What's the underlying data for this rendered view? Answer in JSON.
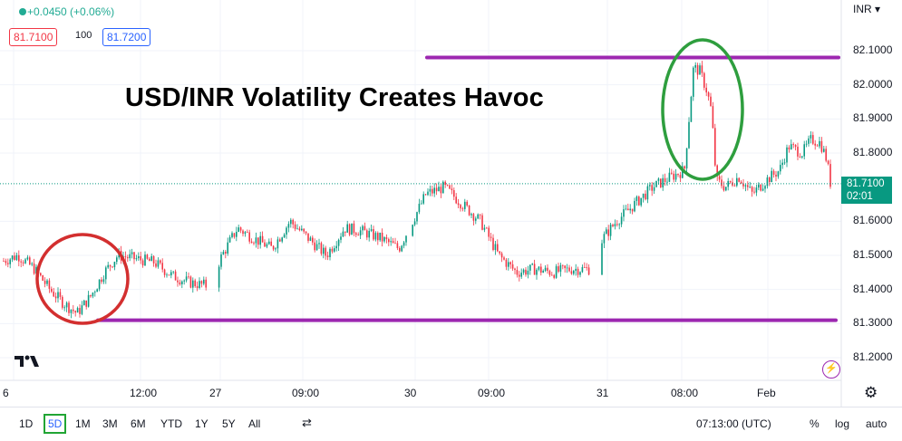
{
  "header": {
    "change": "+0.0450 (+0.06%)",
    "bid": "81.7100",
    "spread": "100",
    "ask": "81.7200"
  },
  "currency": "INR",
  "title": "USD/INR Volatility Creates Havoc",
  "current_price": {
    "value": "81.7100",
    "countdown": "02:01"
  },
  "toolbar": {
    "ranges": [
      "1D",
      "5D",
      "1M",
      "3M",
      "6M",
      "YTD",
      "1Y",
      "5Y",
      "All"
    ],
    "active_range": "5D",
    "time": "07:13:00 (UTC)",
    "percent": "%",
    "log": "log",
    "auto": "auto"
  },
  "colors": {
    "up": "#089981",
    "down": "#f23645",
    "support_resistance": "#9c27b0",
    "red_circle": "#d32f2f",
    "green_circle": "#2e9e3e"
  },
  "chart_data": {
    "type": "candlestick",
    "title": "USD/INR Volatility Creates Havoc",
    "y_ticks": [
      "82.1000",
      "82.0000",
      "81.9000",
      "81.8000",
      "81.6000",
      "81.5000",
      "81.4000",
      "81.3000",
      "81.2000"
    ],
    "x_ticks": [
      "6",
      "12:00",
      "27",
      "09:00",
      "30",
      "09:00",
      "31",
      "08:00",
      "Feb"
    ],
    "ylim": [
      81.15,
      82.18
    ],
    "resistance": 82.08,
    "support": 81.31,
    "last_price": 81.71,
    "series_path": [
      [
        0,
        81.48
      ],
      [
        20,
        81.5
      ],
      [
        38,
        81.46
      ],
      [
        55,
        81.4
      ],
      [
        70,
        81.36
      ],
      [
        85,
        81.33
      ],
      [
        100,
        81.38
      ],
      [
        115,
        81.45
      ],
      [
        130,
        81.5
      ],
      [
        150,
        81.49
      ],
      [
        170,
        81.48
      ],
      [
        190,
        81.44
      ],
      [
        210,
        81.42
      ],
      [
        230,
        81.41
      ],
      [
        245,
        81.5
      ],
      [
        262,
        81.58
      ],
      [
        280,
        81.55
      ],
      [
        300,
        81.52
      ],
      [
        320,
        81.6
      ],
      [
        340,
        81.55
      ],
      [
        360,
        81.5
      ],
      [
        380,
        81.58
      ],
      [
        400,
        81.57
      ],
      [
        420,
        81.55
      ],
      [
        440,
        81.52
      ],
      [
        455,
        81.6
      ],
      [
        470,
        81.68
      ],
      [
        490,
        81.7
      ],
      [
        510,
        81.65
      ],
      [
        530,
        81.6
      ],
      [
        550,
        81.5
      ],
      [
        570,
        81.45
      ],
      [
        590,
        81.46
      ],
      [
        610,
        81.45
      ],
      [
        630,
        81.46
      ],
      [
        650,
        81.46
      ],
      [
        665,
        81.55
      ],
      [
        680,
        81.6
      ],
      [
        700,
        81.65
      ],
      [
        720,
        81.7
      ],
      [
        740,
        81.73
      ],
      [
        755,
        81.75
      ],
      [
        760,
        81.9
      ],
      [
        765,
        82.05
      ],
      [
        772,
        82.04
      ],
      [
        780,
        81.98
      ],
      [
        785,
        81.92
      ],
      [
        790,
        81.72
      ],
      [
        800,
        81.7
      ],
      [
        815,
        81.73
      ],
      [
        830,
        81.68
      ],
      [
        845,
        81.72
      ],
      [
        860,
        81.75
      ],
      [
        870,
        81.82
      ],
      [
        885,
        81.8
      ],
      [
        895,
        81.84
      ],
      [
        905,
        81.83
      ],
      [
        912,
        81.78
      ],
      [
        918,
        81.68
      ]
    ],
    "annotations": [
      "red-circle-support",
      "green-circle-spike"
    ]
  }
}
